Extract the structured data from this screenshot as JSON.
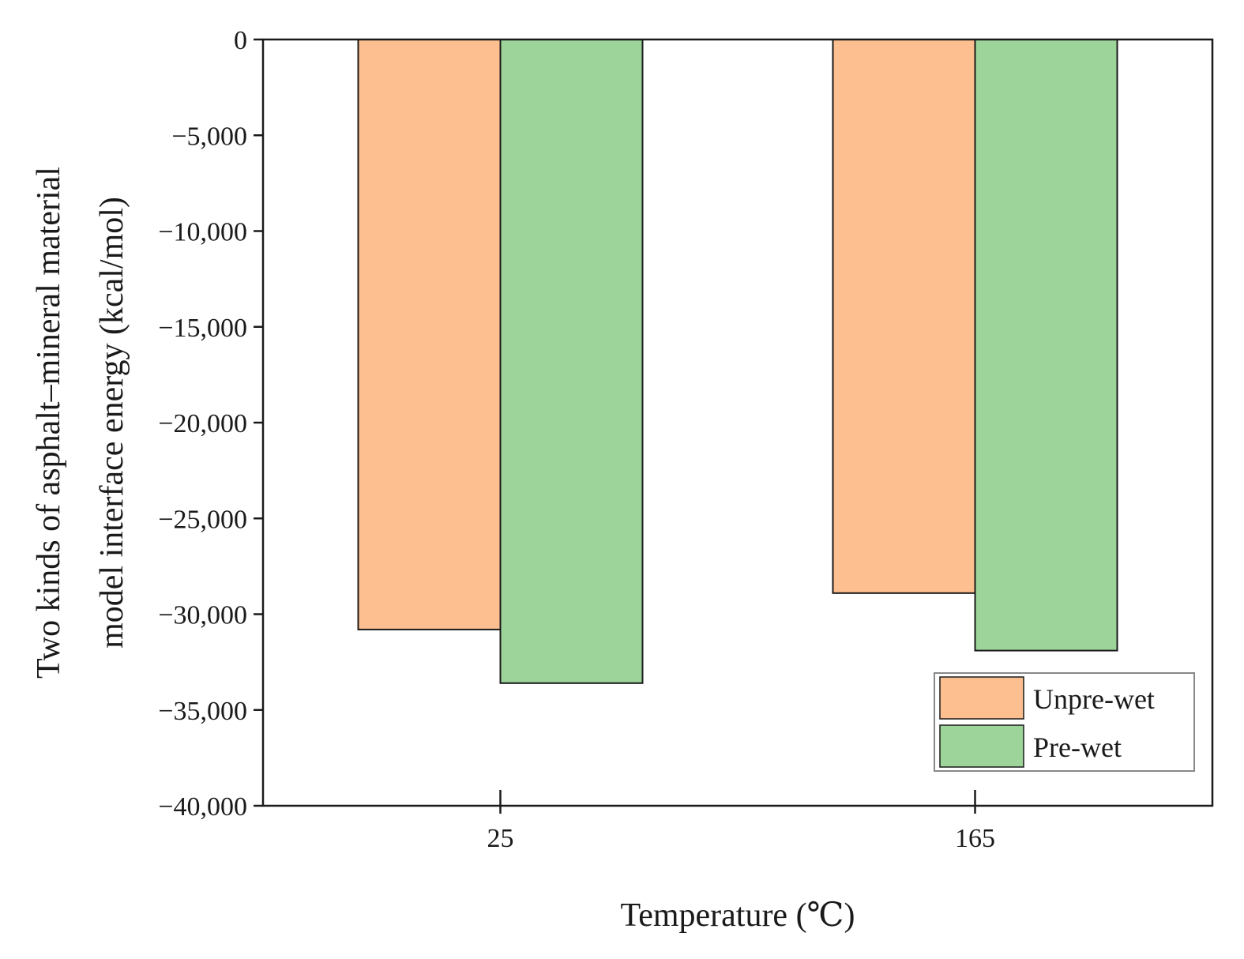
{
  "chart_data": {
    "type": "bar",
    "title": "",
    "xlabel": "Temperature (℃)",
    "ylabel_lines": [
      "Two kinds of asphalt–mineral material",
      "model interface energy (kcal/mol)"
    ],
    "categories": [
      "25",
      "165"
    ],
    "series": [
      {
        "name": "Unpre-wet",
        "color": "#FDBF8F",
        "values": [
          -30800,
          -28900
        ]
      },
      {
        "name": "Pre-wet",
        "color": "#9DD49A",
        "values": [
          -33600,
          -31900
        ]
      }
    ],
    "ylim": [
      -40000,
      0
    ],
    "yticks": [
      0,
      -5000,
      -10000,
      -15000,
      -20000,
      -25000,
      -30000,
      -35000,
      -40000
    ],
    "ytick_labels": [
      "0",
      "−5,000",
      "−10,000",
      "−15,000",
      "−20,000",
      "−25,000",
      "−30,000",
      "−35,000",
      "−40,000"
    ],
    "grid": false,
    "legend_position": "bottom-right"
  }
}
